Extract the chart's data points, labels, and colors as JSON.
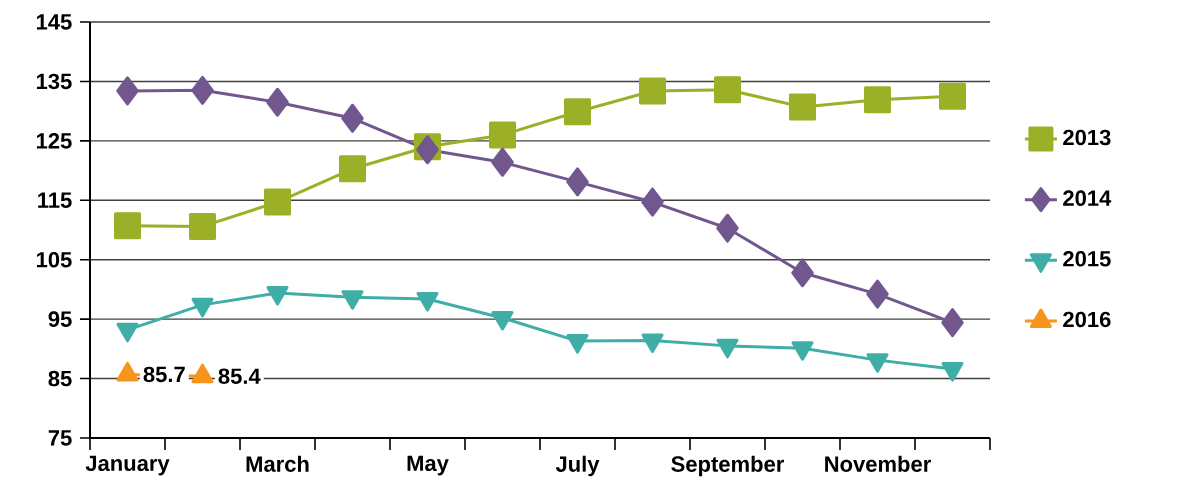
{
  "chart_data": {
    "type": "line",
    "categories": [
      "January",
      null,
      "March",
      null,
      "May",
      null,
      "July",
      null,
      "September",
      null,
      "November",
      null
    ],
    "series": [
      {
        "name": "2013",
        "color": "#9bb026",
        "marker": "square",
        "values": [
          110.7,
          110.6,
          114.7,
          120.3,
          124.0,
          126.0,
          129.9,
          133.4,
          133.6,
          130.7,
          131.9,
          132.5
        ]
      },
      {
        "name": "2014",
        "color": "#72578f",
        "marker": "diamond",
        "values": [
          133.4,
          133.5,
          131.5,
          128.8,
          123.5,
          121.4,
          118.1,
          114.7,
          110.3,
          102.8,
          99.2,
          94.4
        ]
      },
      {
        "name": "2015",
        "color": "#3eaea7",
        "marker": "triangle",
        "values": [
          93.2,
          97.4,
          99.4,
          98.7,
          98.4,
          95.2,
          91.3,
          91.4,
          90.5,
          90.1,
          88.1,
          86.6
        ]
      },
      {
        "name": "2016",
        "color": "#f7941d",
        "marker": "triangle",
        "values": [
          85.7,
          85.4,
          null,
          null,
          null,
          null,
          null,
          null,
          null,
          null,
          null,
          null
        ],
        "value_labels": [
          "85.7",
          "85.4",
          null,
          null,
          null,
          null,
          null,
          null,
          null,
          null,
          null,
          null
        ]
      }
    ],
    "ylim": [
      75,
      145
    ],
    "yticks": [
      75,
      85,
      95,
      105,
      115,
      125,
      135,
      145
    ],
    "grid": "y",
    "legend": "right",
    "line_style": "solid"
  }
}
